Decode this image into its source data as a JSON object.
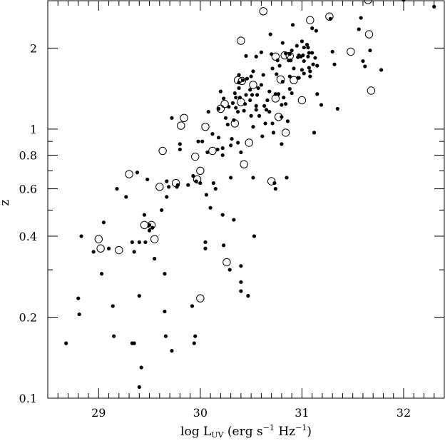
{
  "chart_data": {
    "type": "scatter",
    "title": "",
    "xlabel": "log L",
    "xlabel_sub": "UV",
    "xlabel_units": " (erg s",
    "xlabel_exp1": "−1",
    "xlabel_mid": " Hz",
    "xlabel_exp2": "−1",
    "xlabel_end": ")",
    "ylabel": "z",
    "xlim": [
      28.5,
      32.4
    ],
    "ylim": [
      0.1,
      3.0
    ],
    "yscale": "log",
    "x_ticks": [
      {
        "value": 29,
        "label": "29"
      },
      {
        "value": 30,
        "label": "30"
      },
      {
        "value": 31,
        "label": "31"
      },
      {
        "value": 32,
        "label": "32"
      }
    ],
    "y_ticks": [
      {
        "value": 0.1,
        "label": "0.1"
      },
      {
        "value": 0.2,
        "label": "0.2"
      },
      {
        "value": 0.4,
        "label": "0.4"
      },
      {
        "value": 0.6,
        "label": "0.6"
      },
      {
        "value": 0.8,
        "label": "0.8"
      },
      {
        "value": 1,
        "label": "1"
      },
      {
        "value": 2,
        "label": "2"
      }
    ],
    "series": [
      {
        "marker": "filled-circle",
        "points": [
          [
            28.68,
            0.16
          ],
          [
            28.8,
            0.235
          ],
          [
            28.81,
            0.205
          ],
          [
            28.83,
            0.4
          ],
          [
            28.95,
            0.35
          ],
          [
            29.03,
            0.29
          ],
          [
            29.05,
            0.45
          ],
          [
            29.1,
            0.36
          ],
          [
            29.14,
            0.22
          ],
          [
            29.15,
            0.17
          ],
          [
            29.18,
            0.6
          ],
          [
            29.27,
            0.56
          ],
          [
            29.33,
            0.38
          ],
          [
            29.33,
            0.16
          ],
          [
            29.35,
            0.16
          ],
          [
            29.35,
            0.35
          ],
          [
            29.38,
            0.69
          ],
          [
            29.4,
            0.38
          ],
          [
            29.4,
            0.24
          ],
          [
            29.4,
            0.11
          ],
          [
            29.42,
            0.13
          ],
          [
            29.45,
            0.48
          ],
          [
            29.46,
            0.38
          ],
          [
            29.48,
            0.65
          ],
          [
            29.5,
            0.44
          ],
          [
            29.5,
            0.42
          ],
          [
            29.53,
            0.43
          ],
          [
            29.55,
            0.33
          ],
          [
            29.62,
            0.5
          ],
          [
            29.65,
            0.29
          ],
          [
            29.65,
            0.21
          ],
          [
            29.66,
            0.17
          ],
          [
            29.67,
            0.64
          ],
          [
            29.67,
            0.56
          ],
          [
            29.69,
            0.61
          ],
          [
            29.72,
            1.1
          ],
          [
            29.72,
            0.15
          ],
          [
            29.77,
            0.61
          ],
          [
            29.78,
            0.62
          ],
          [
            29.8,
            0.88
          ],
          [
            29.8,
            0.84
          ],
          [
            29.88,
            0.62
          ],
          [
            29.92,
            0.22
          ],
          [
            29.93,
            0.67
          ],
          [
            29.94,
            0.16
          ],
          [
            29.95,
            0.17
          ],
          [
            29.96,
            0.64
          ],
          [
            29.98,
            0.9
          ],
          [
            30.0,
            0.63
          ],
          [
            30.02,
            0.9
          ],
          [
            30.05,
            0.38
          ],
          [
            30.05,
            0.36
          ],
          [
            30.06,
            0.57
          ],
          [
            30.07,
            0.82
          ],
          [
            30.08,
            1.16
          ],
          [
            30.1,
            0.51
          ],
          [
            30.12,
            0.96
          ],
          [
            30.13,
            0.63
          ],
          [
            30.15,
            0.6
          ],
          [
            30.17,
            0.84
          ],
          [
            30.18,
            0.93
          ],
          [
            30.18,
            1.19
          ],
          [
            30.2,
            1.38
          ],
          [
            30.22,
            0.85
          ],
          [
            30.22,
            0.8
          ],
          [
            30.22,
            0.48
          ],
          [
            30.23,
            1.3
          ],
          [
            30.23,
            0.37
          ],
          [
            30.25,
            1.1
          ],
          [
            30.27,
            1.04
          ],
          [
            30.28,
            1.21
          ],
          [
            30.29,
            0.3
          ],
          [
            30.3,
            0.87
          ],
          [
            30.3,
            0.66
          ],
          [
            30.31,
            0.92
          ],
          [
            30.32,
            1.25
          ],
          [
            30.33,
            1.08
          ],
          [
            30.33,
            0.46
          ],
          [
            30.34,
            1.36
          ],
          [
            30.35,
            1.31
          ],
          [
            30.35,
            1.2
          ],
          [
            30.37,
            1.16
          ],
          [
            30.37,
            0.89
          ],
          [
            30.38,
            1.49
          ],
          [
            30.38,
            1.59
          ],
          [
            30.38,
            1.42
          ],
          [
            30.39,
            1.31
          ],
          [
            30.4,
            0.82
          ],
          [
            30.4,
            0.31
          ],
          [
            30.4,
            0.25
          ],
          [
            30.4,
            0.27
          ],
          [
            30.42,
            1.52
          ],
          [
            30.43,
            1.17
          ],
          [
            30.44,
            1.24
          ],
          [
            30.45,
            1.34
          ],
          [
            30.45,
            1.87
          ],
          [
            30.46,
            1.54
          ],
          [
            30.47,
            0.24
          ],
          [
            30.49,
            1.4
          ],
          [
            30.49,
            1.28
          ],
          [
            30.5,
            1.57
          ],
          [
            30.5,
            1.12
          ],
          [
            30.51,
            1.34
          ],
          [
            30.52,
            1.64
          ],
          [
            30.52,
            1.02
          ],
          [
            30.52,
            0.66
          ],
          [
            30.53,
            0.4
          ],
          [
            30.55,
            1.86
          ],
          [
            30.55,
            1.22
          ],
          [
            30.55,
            1.18
          ],
          [
            30.56,
            1.34
          ],
          [
            30.57,
            1.42
          ],
          [
            30.58,
            1.12
          ],
          [
            30.6,
            1.93
          ],
          [
            30.6,
            1.46
          ],
          [
            30.61,
            0.94
          ],
          [
            30.62,
            1.59
          ],
          [
            30.63,
            1.22
          ],
          [
            30.64,
            1.05
          ],
          [
            30.65,
            1.18
          ],
          [
            30.66,
            1.28
          ],
          [
            30.68,
            1.38
          ],
          [
            30.68,
            1.16
          ],
          [
            30.69,
            2.25
          ],
          [
            30.7,
            1.9
          ],
          [
            30.71,
            1.68
          ],
          [
            30.71,
            1.05
          ],
          [
            30.72,
            0.97
          ],
          [
            30.73,
            0.63
          ],
          [
            30.74,
            1.35
          ],
          [
            30.74,
            0.6
          ],
          [
            30.75,
            1.6
          ],
          [
            30.76,
            1.8
          ],
          [
            30.77,
            1.35
          ],
          [
            30.78,
            1.72
          ],
          [
            30.8,
            1.23
          ],
          [
            30.8,
            1.11
          ],
          [
            30.8,
            0.88
          ],
          [
            30.81,
            2.09
          ],
          [
            30.81,
            1.5
          ],
          [
            30.82,
            1.31
          ],
          [
            30.84,
            1.91
          ],
          [
            30.84,
            1.24
          ],
          [
            30.85,
            0.66
          ],
          [
            30.86,
            1.07
          ],
          [
            30.87,
            1.8
          ],
          [
            30.88,
            1.9
          ],
          [
            30.88,
            1.57
          ],
          [
            30.88,
            1.41
          ],
          [
            30.89,
            1.8
          ],
          [
            30.9,
            1.96
          ],
          [
            30.9,
            1.36
          ],
          [
            30.91,
            2.44
          ],
          [
            30.92,
            1.68
          ],
          [
            30.95,
            2.04
          ],
          [
            30.96,
            1.85
          ],
          [
            30.96,
            1.55
          ],
          [
            30.97,
            1.88
          ],
          [
            30.97,
            1.55
          ],
          [
            30.99,
            1.86
          ],
          [
            31.0,
            2.12
          ],
          [
            31.0,
            1.66
          ],
          [
            31.01,
            1.88
          ],
          [
            31.02,
            2.01
          ],
          [
            31.02,
            1.79
          ],
          [
            31.02,
            1.61
          ],
          [
            31.05,
            2.06
          ],
          [
            31.06,
            1.86
          ],
          [
            31.06,
            2.01
          ],
          [
            31.07,
            1.69
          ],
          [
            31.07,
            1.92
          ],
          [
            31.08,
            1.64
          ],
          [
            31.08,
            1.57
          ],
          [
            31.1,
            2.37
          ],
          [
            31.1,
            1.92
          ],
          [
            31.11,
            1.74
          ],
          [
            31.12,
            0.97
          ],
          [
            31.13,
            1.84
          ],
          [
            31.14,
            2.32
          ],
          [
            31.15,
            1.72
          ],
          [
            31.15,
            1.35
          ],
          [
            31.19,
            1.23
          ],
          [
            31.28,
            2.57
          ],
          [
            31.3,
            1.94
          ],
          [
            31.32,
            1.74
          ],
          [
            31.35,
            1.19
          ],
          [
            31.56,
            2.35
          ],
          [
            31.58,
            2.59
          ],
          [
            31.6,
            1.79
          ],
          [
            31.62,
            1.71
          ],
          [
            31.67,
            1.96
          ],
          [
            31.78,
            1.66
          ],
          [
            32.0,
            3.02
          ],
          [
            32.3,
            2.85
          ]
        ]
      },
      {
        "marker": "open-circle",
        "points": [
          [
            29.0,
            0.39
          ],
          [
            29.02,
            0.36
          ],
          [
            29.2,
            0.355
          ],
          [
            29.3,
            0.68
          ],
          [
            29.45,
            0.44
          ],
          [
            29.52,
            0.44
          ],
          [
            29.55,
            0.39
          ],
          [
            29.6,
            0.61
          ],
          [
            29.63,
            0.83
          ],
          [
            29.76,
            0.63
          ],
          [
            29.81,
            1.03
          ],
          [
            29.84,
            1.1
          ],
          [
            29.95,
            0.79
          ],
          [
            29.97,
            0.65
          ],
          [
            30.0,
            0.7
          ],
          [
            30.0,
            0.235
          ],
          [
            30.05,
            1.02
          ],
          [
            30.12,
            0.83
          ],
          [
            30.2,
            1.19
          ],
          [
            30.24,
            1.24
          ],
          [
            30.26,
            0.32
          ],
          [
            30.34,
            1.05
          ],
          [
            30.37,
            1.52
          ],
          [
            30.4,
            1.26
          ],
          [
            30.4,
            2.13
          ],
          [
            30.41,
            1.51
          ],
          [
            30.43,
            0.74
          ],
          [
            30.48,
            0.89
          ],
          [
            30.52,
            1.46
          ],
          [
            30.62,
            2.74
          ],
          [
            30.7,
            0.64
          ],
          [
            30.74,
            1.3
          ],
          [
            30.74,
            1.86
          ],
          [
            30.77,
            1.11
          ],
          [
            30.79,
            1.53
          ],
          [
            30.83,
            1.88
          ],
          [
            30.84,
            0.97
          ],
          [
            30.88,
            1.87
          ],
          [
            30.92,
            1.52
          ],
          [
            31.0,
            1.28
          ],
          [
            31.08,
            2.54
          ],
          [
            31.27,
            2.62
          ],
          [
            31.48,
            1.94
          ],
          [
            31.65,
            3.02
          ],
          [
            31.66,
            2.25
          ],
          [
            31.68,
            1.39
          ]
        ]
      }
    ]
  }
}
